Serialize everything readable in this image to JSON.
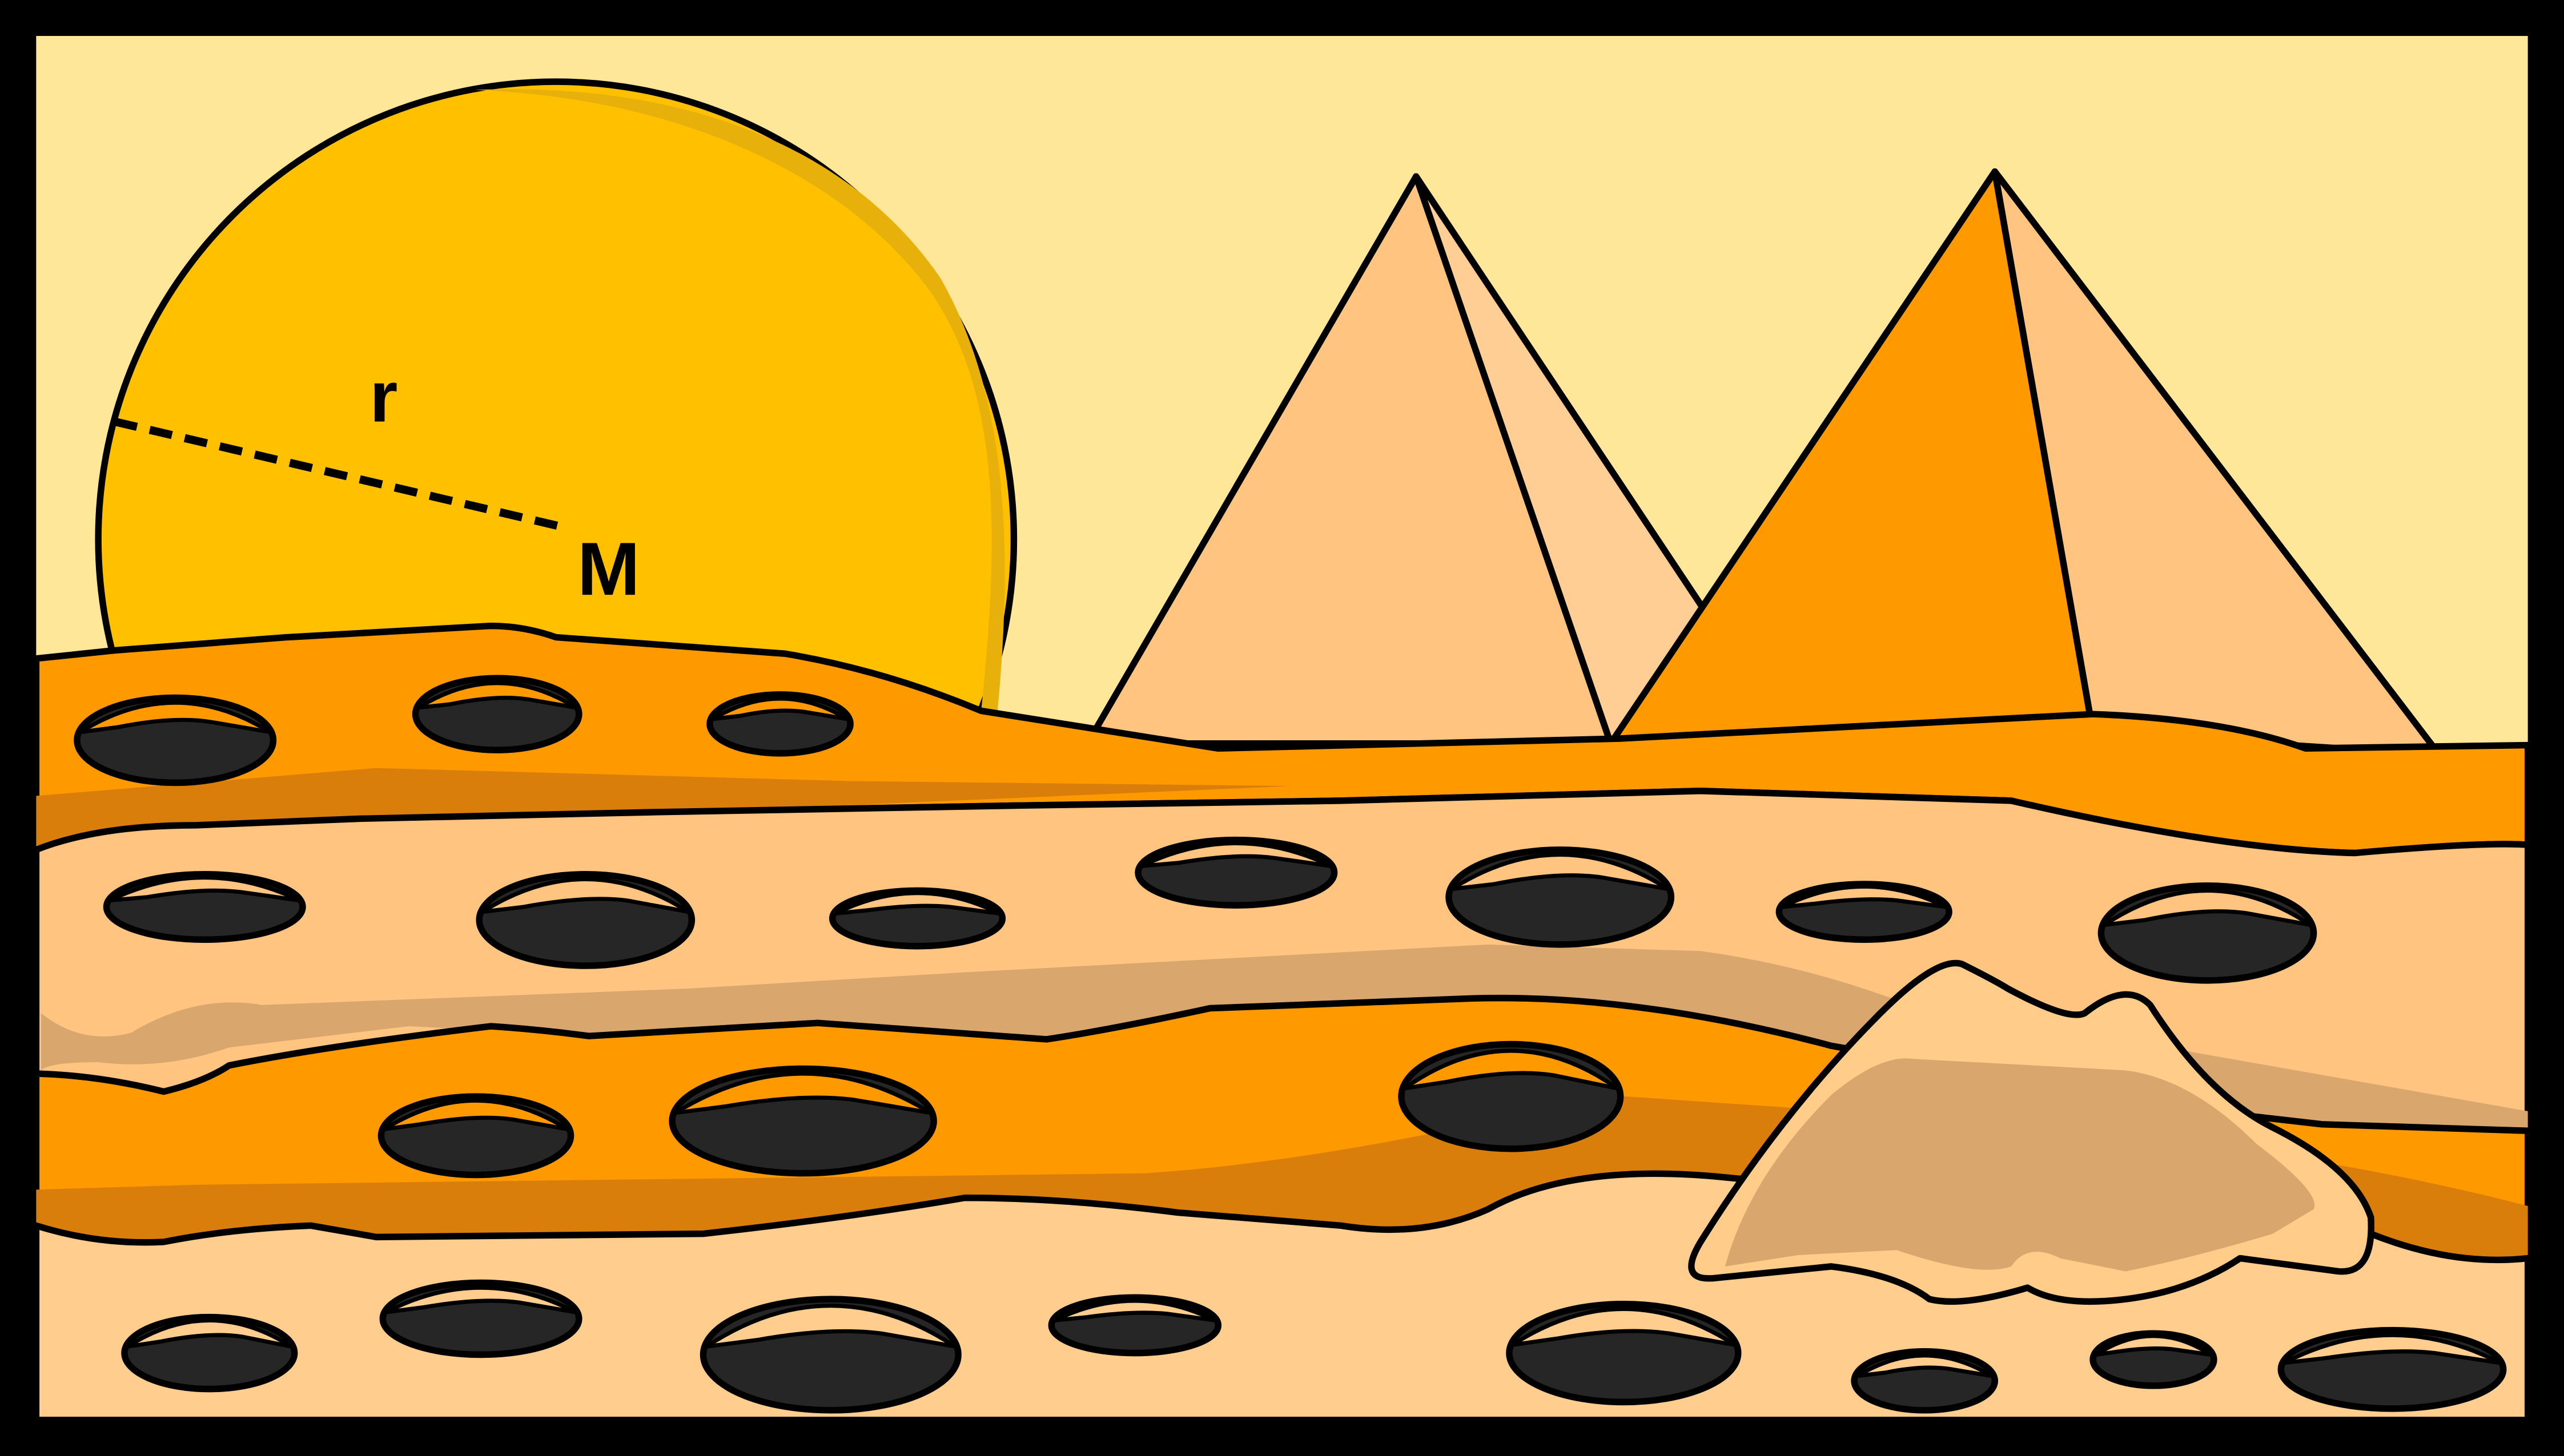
{
  "labels": {
    "radius": "r",
    "center": "M"
  },
  "colors": {
    "frame": "#000000",
    "sky": "#FFE79A",
    "sun": "#FFC000",
    "sun_shade": "#E8B00A",
    "pyramid_light": "#FFC580",
    "pyramid_pale": "#FFCE94",
    "pyramid_dark": "#FF9900",
    "dune_orange": "#FF9900",
    "dune_orange_shade": "#D97E0A",
    "sand_light": "#FFC580",
    "sand_pale": "#FFCE8E",
    "sand_muted": "#D9A66E",
    "rock": "#FFCC8A",
    "hole": "#262626",
    "outline": "#000000"
  }
}
